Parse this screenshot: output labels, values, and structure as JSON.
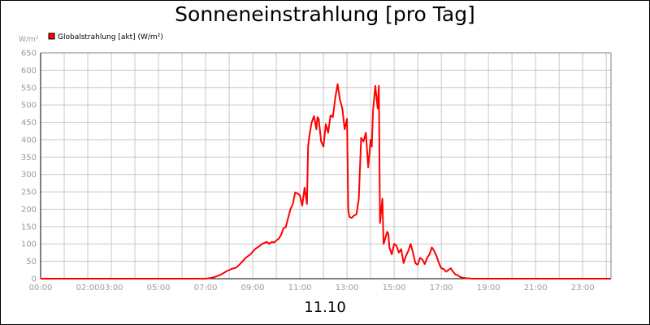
{
  "title": "Sonneneinstrahlung [pro Tag]",
  "date_label": "11.10",
  "colors": {
    "series": "#ff0000",
    "grid": "#c8c8c8",
    "tick_text": "#9a9a9a",
    "frame": "#000000"
  },
  "chart_data": {
    "type": "line",
    "title": "Sonneneinstrahlung [pro Tag]",
    "subtitle": "11.10",
    "ylabel": "W/m²",
    "xlabel": "",
    "ylim": [
      0,
      650
    ],
    "xlim": [
      0,
      24.2
    ],
    "grid": true,
    "legend_position": "top-left",
    "y_ticks": [
      0,
      50,
      100,
      150,
      200,
      250,
      300,
      350,
      400,
      450,
      500,
      550,
      600,
      650
    ],
    "x_ticks": [
      {
        "x": 0,
        "label": "00:00"
      },
      {
        "x": 2,
        "label": "02:00"
      },
      {
        "x": 3,
        "label": "03:00"
      },
      {
        "x": 5,
        "label": "05:00"
      },
      {
        "x": 7,
        "label": "07:00"
      },
      {
        "x": 9,
        "label": "09:00"
      },
      {
        "x": 11,
        "label": "11:00"
      },
      {
        "x": 13,
        "label": "13:00"
      },
      {
        "x": 15,
        "label": "15:00"
      },
      {
        "x": 17,
        "label": "17:00"
      },
      {
        "x": 19,
        "label": "19:00"
      },
      {
        "x": 21,
        "label": "21:00"
      },
      {
        "x": 23,
        "label": "23:00"
      }
    ],
    "series": [
      {
        "name": "Globalstrahlung [akt] (W/m²)",
        "color": "#ff0000",
        "x": [
          0,
          7.0,
          7.3,
          7.6,
          7.9,
          8.1,
          8.3,
          8.5,
          8.7,
          8.9,
          9.0,
          9.1,
          9.3,
          9.4,
          9.5,
          9.6,
          9.7,
          9.8,
          9.9,
          10.0,
          10.1,
          10.2,
          10.3,
          10.4,
          10.5,
          10.6,
          10.7,
          10.8,
          10.9,
          11.0,
          11.1,
          11.2,
          11.3,
          11.35,
          11.4,
          11.5,
          11.6,
          11.7,
          11.75,
          11.8,
          11.9,
          12.0,
          12.1,
          12.2,
          12.3,
          12.4,
          12.5,
          12.6,
          12.7,
          12.8,
          12.9,
          13.0,
          13.05,
          13.1,
          13.2,
          13.3,
          13.4,
          13.5,
          13.6,
          13.7,
          13.8,
          13.9,
          14.0,
          14.05,
          14.1,
          14.2,
          14.3,
          14.35,
          14.4,
          14.5,
          14.55,
          14.6,
          14.7,
          14.75,
          14.8,
          14.9,
          15.0,
          15.1,
          15.2,
          15.3,
          15.4,
          15.5,
          15.6,
          15.7,
          15.8,
          15.9,
          16.0,
          16.1,
          16.2,
          16.3,
          16.4,
          16.5,
          16.6,
          16.7,
          16.8,
          16.9,
          17.0,
          17.1,
          17.2,
          17.3,
          17.4,
          17.5,
          17.6,
          17.7,
          17.8,
          17.9,
          18.0,
          18.1,
          18.2,
          18.3,
          18.5,
          24.2
        ],
        "y": [
          0,
          0,
          3,
          10,
          22,
          28,
          32,
          45,
          60,
          70,
          78,
          85,
          95,
          100,
          103,
          106,
          100,
          106,
          104,
          110,
          115,
          125,
          145,
          148,
          175,
          200,
          215,
          248,
          245,
          240,
          210,
          262,
          215,
          380,
          410,
          450,
          468,
          430,
          465,
          460,
          395,
          380,
          445,
          420,
          470,
          465,
          520,
          560,
          515,
          490,
          430,
          460,
          200,
          178,
          175,
          182,
          185,
          230,
          405,
          395,
          420,
          320,
          400,
          380,
          480,
          555,
          490,
          555,
          160,
          230,
          100,
          110,
          135,
          130,
          90,
          70,
          100,
          95,
          75,
          85,
          45,
          65,
          80,
          100,
          75,
          45,
          40,
          60,
          55,
          42,
          60,
          70,
          90,
          80,
          65,
          45,
          30,
          28,
          20,
          25,
          30,
          20,
          12,
          10,
          5,
          3,
          2,
          1,
          1,
          0,
          0,
          0
        ]
      }
    ]
  }
}
